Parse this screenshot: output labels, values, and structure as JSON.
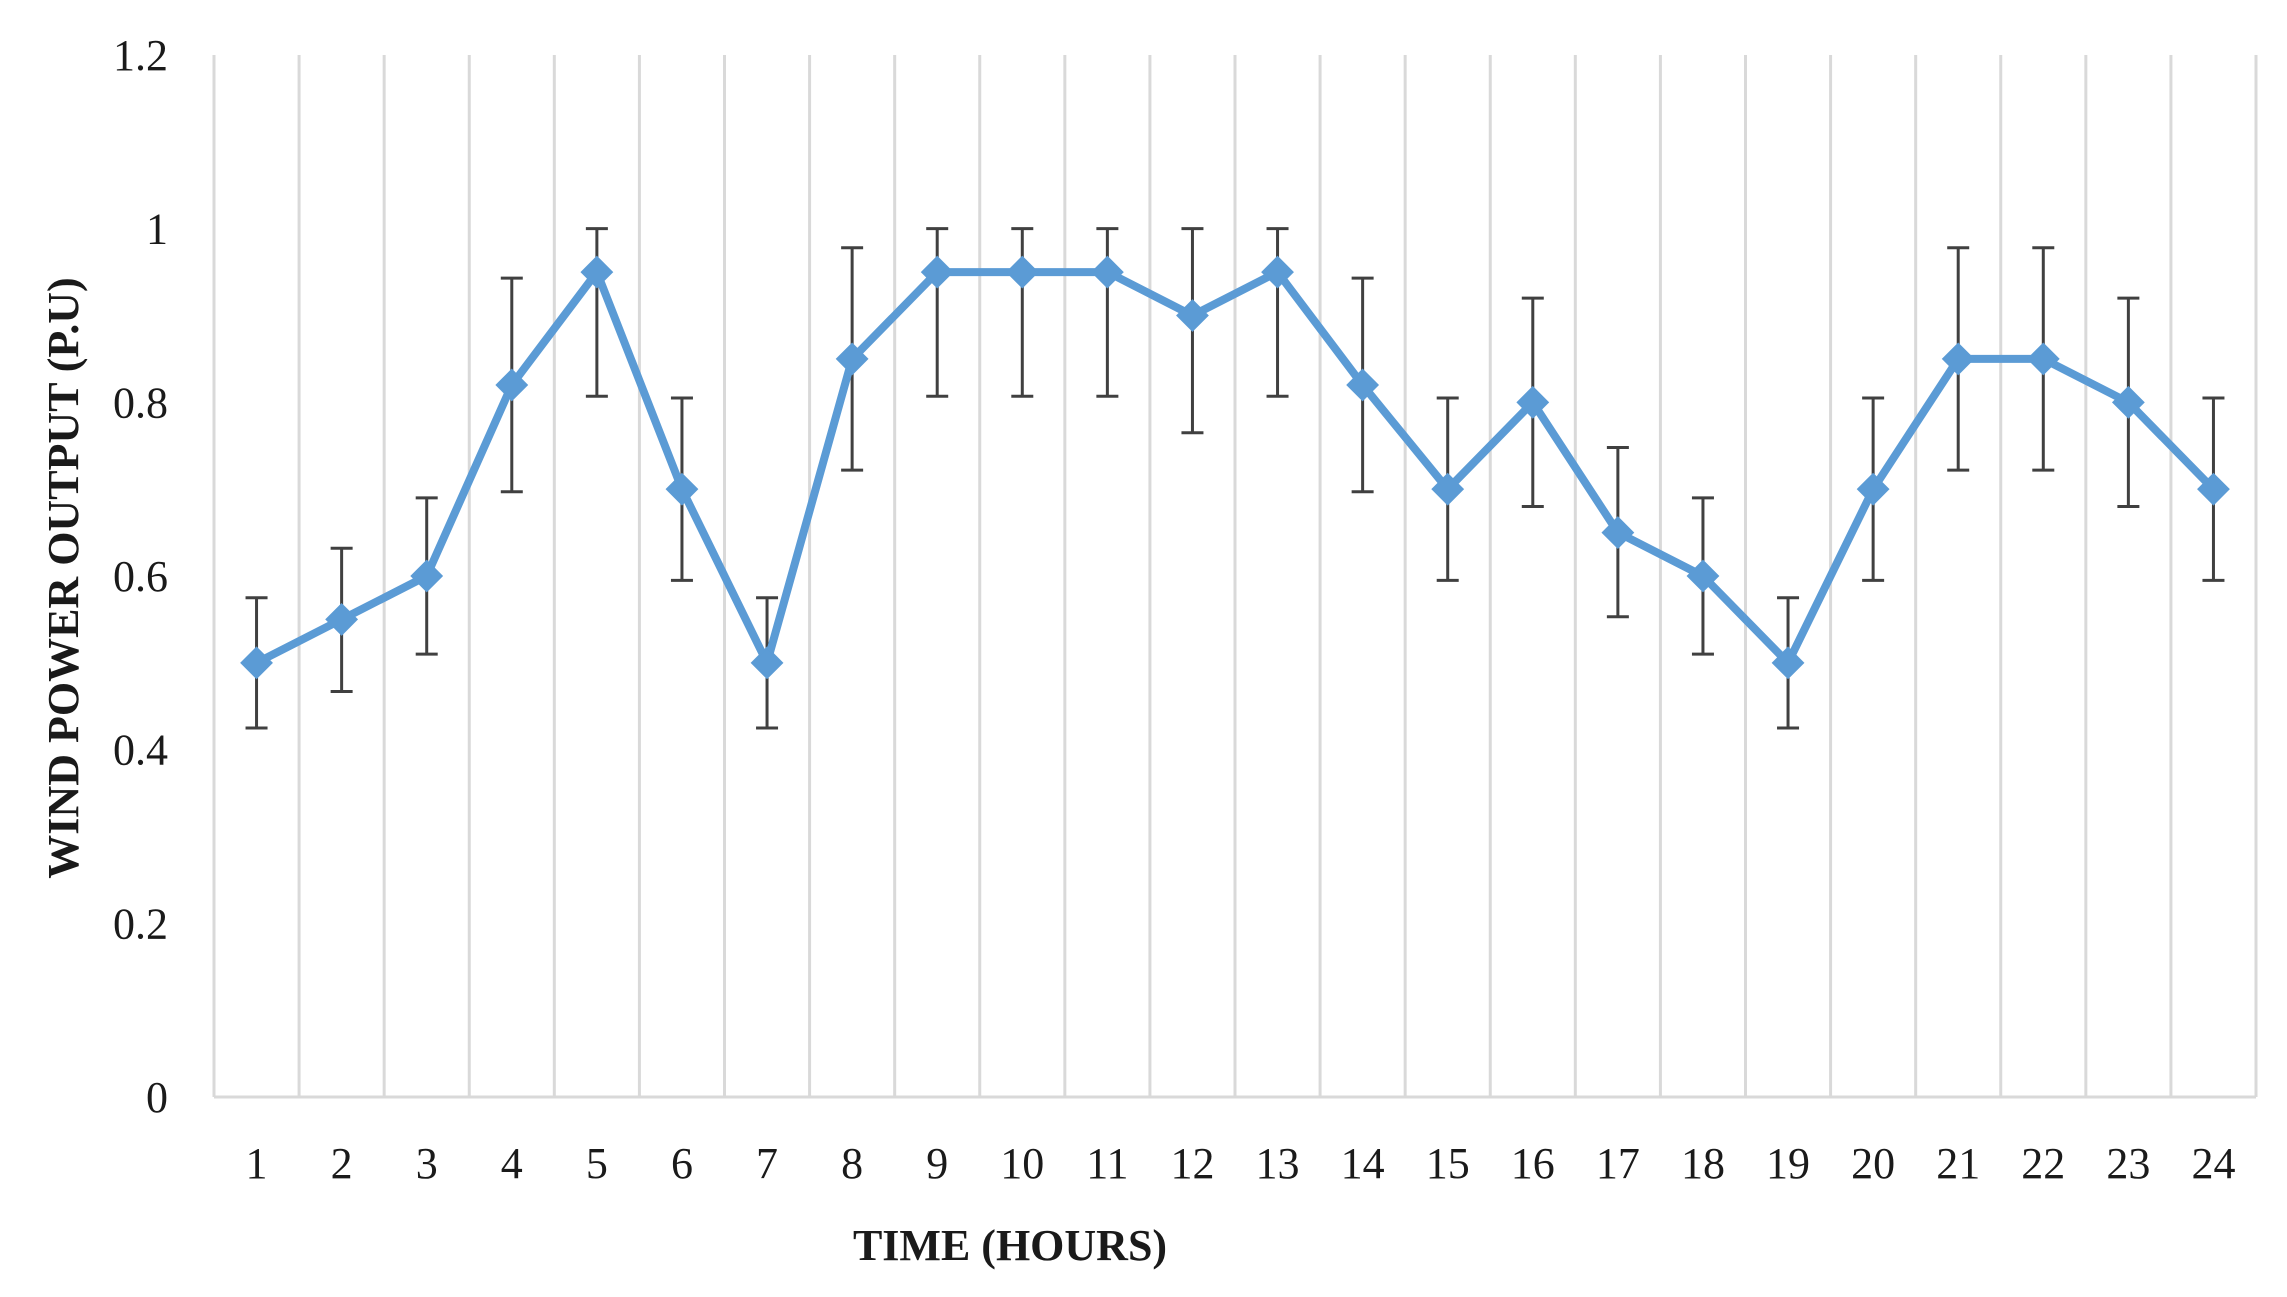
{
  "chart_data": {
    "type": "line",
    "title": "",
    "xlabel": "TIME (HOURS)",
    "ylabel": "WIND POWER OUTPUT (P.U)",
    "ylim": [
      0,
      1.2
    ],
    "yticks": [
      "0",
      "0.2",
      "0.4",
      "0.6",
      "0.8",
      "1",
      "1.2"
    ],
    "grid": "vertical",
    "legend": "none",
    "line_color": "#5b9bd5",
    "error_bar_color": "#404040",
    "grid_color": "#d9d9d9",
    "categories": [
      "1",
      "2",
      "3",
      "4",
      "5",
      "6",
      "7",
      "8",
      "9",
      "10",
      "11",
      "12",
      "13",
      "14",
      "15",
      "16",
      "17",
      "18",
      "19",
      "20",
      "21",
      "22",
      "23",
      "24"
    ],
    "series": [
      {
        "values": [
          0.5,
          0.55,
          0.6,
          0.82,
          0.95,
          0.7,
          0.5,
          0.85,
          0.95,
          0.95,
          0.95,
          0.9,
          0.95,
          0.82,
          0.7,
          0.8,
          0.65,
          0.6,
          0.5,
          0.7,
          0.85,
          0.85,
          0.8,
          0.7
        ],
        "error_high": [
          0.575,
          0.632,
          0.69,
          0.943,
          1.0,
          0.805,
          0.575,
          0.978,
          1.0,
          1.0,
          1.0,
          1.0,
          1.0,
          0.943,
          0.805,
          0.92,
          0.748,
          0.69,
          0.575,
          0.805,
          0.978,
          0.978,
          0.92,
          0.805
        ],
        "error_low": [
          0.425,
          0.467,
          0.51,
          0.697,
          0.807,
          0.595,
          0.425,
          0.722,
          0.807,
          0.807,
          0.807,
          0.765,
          0.807,
          0.697,
          0.595,
          0.68,
          0.553,
          0.51,
          0.425,
          0.595,
          0.722,
          0.722,
          0.68,
          0.595
        ]
      }
    ],
    "marker": "diamond"
  }
}
